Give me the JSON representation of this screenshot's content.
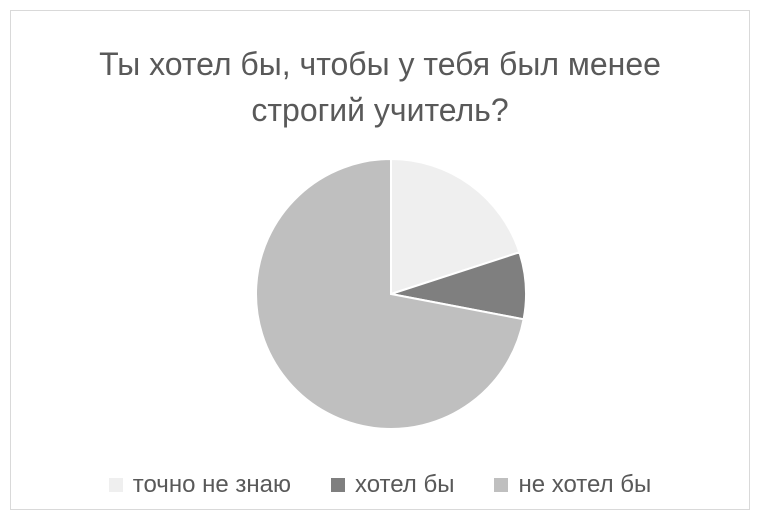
{
  "chart_data": {
    "type": "pie",
    "title_lines": [
      "Ты хотел бы, чтобы у тебя был менее",
      "строгий учитель?"
    ],
    "categories": [
      "точно не знаю",
      "хотел бы",
      "не хотел бы"
    ],
    "values": [
      20,
      8,
      72
    ],
    "colors": [
      "#efefef",
      "#7f7f7f",
      "#bfbfbf"
    ],
    "start_angle_deg": 0,
    "direction": "clockwise",
    "legend_position": "bottom"
  }
}
